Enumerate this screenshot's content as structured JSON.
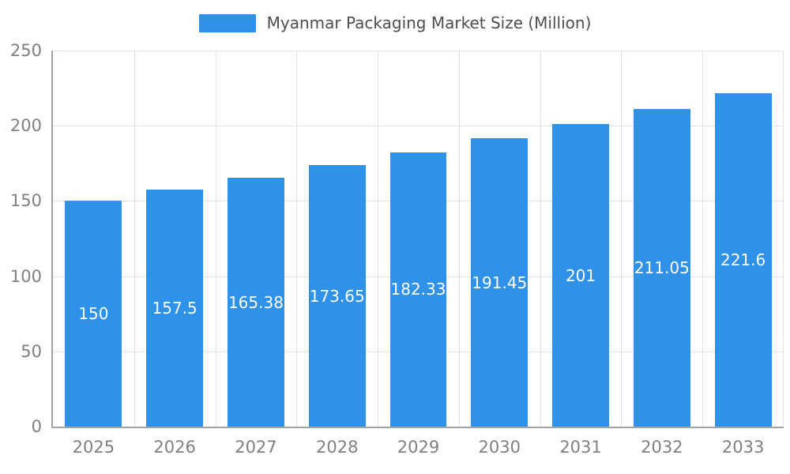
{
  "chart_data": {
    "type": "bar",
    "title": "Myanmar Packaging Market Size (Million)",
    "legend": {
      "label": "Myanmar Packaging Market Size (Million)",
      "position": "top"
    },
    "categories": [
      "2025",
      "2026",
      "2027",
      "2028",
      "2029",
      "2030",
      "2031",
      "2032",
      "2033"
    ],
    "series": [
      {
        "name": "Myanmar Packaging Market Size (Million)",
        "values": [
          150,
          157.5,
          165.38,
          173.65,
          182.33,
          191.45,
          201,
          211.05,
          221.6
        ],
        "data_labels": [
          "150",
          "157.5",
          "165.38",
          "173.65",
          "182.33",
          "191.45",
          "201",
          "211.05",
          "221.6"
        ]
      }
    ],
    "xlabel": "",
    "ylabel": "",
    "ylim": [
      0,
      250
    ],
    "yticks": [
      0,
      50,
      100,
      150,
      200,
      250
    ],
    "grid": true,
    "colors": {
      "bar": "#2f92e8",
      "data_label": "#ffffff",
      "axis_text": "#808080",
      "legend_text": "#4d4d4d",
      "gridline": "#e3e3e3",
      "axis_line": "#a3a3a3",
      "background": "#ffffff"
    }
  }
}
